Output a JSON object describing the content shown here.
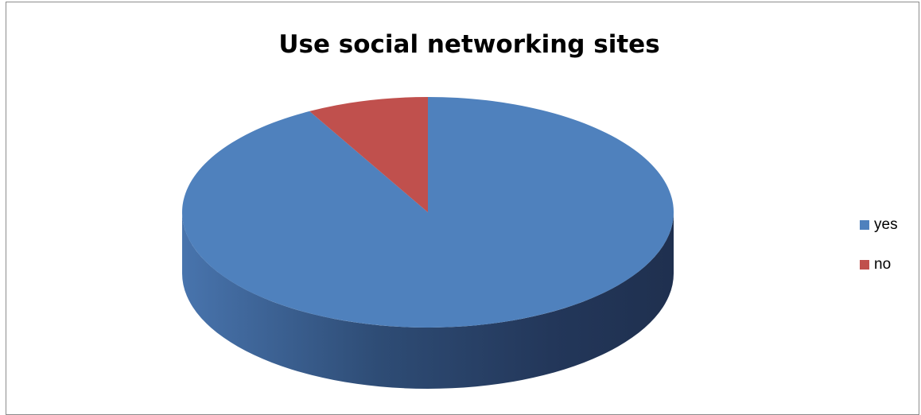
{
  "chart_data": {
    "type": "pie",
    "style": "3d",
    "title": "Use social networking sites",
    "categories": [
      "yes",
      "no"
    ],
    "values": [
      92,
      8
    ],
    "colors": [
      "#4f81bd",
      "#c0504d"
    ],
    "legend": {
      "placement": "right",
      "labels": [
        "yes",
        "no"
      ]
    }
  }
}
